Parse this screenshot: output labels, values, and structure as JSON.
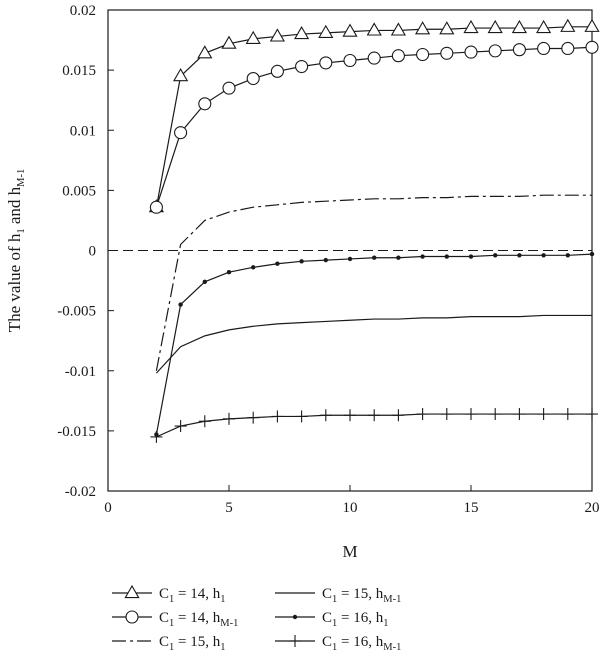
{
  "chart_data": {
    "type": "line",
    "xlabel": "M",
    "ylabel": {
      "prefix": "The value of h",
      "sub1": "1",
      "mid": " and h",
      "sub2": "M-1"
    },
    "xlim": [
      0,
      20
    ],
    "ylim": [
      -0.02,
      0.02
    ],
    "x_ticks": [
      0,
      5,
      10,
      15,
      20
    ],
    "x_tick_labels": [
      "0",
      "5",
      "10",
      "15",
      "20"
    ],
    "y_ticks": [
      0.02,
      0.015,
      0.01,
      0.005,
      0,
      -0.005,
      -0.01,
      -0.015,
      -0.02
    ],
    "y_tick_labels": [
      "0.02",
      "0.015",
      "0.01",
      "0.005",
      "0",
      "-0.005",
      "-0.01",
      "-0.015",
      "-0.02"
    ],
    "grid": false,
    "reference_line": {
      "y": 0,
      "style": "dashed"
    },
    "x": [
      2,
      3,
      4,
      5,
      6,
      7,
      8,
      9,
      10,
      11,
      12,
      13,
      14,
      15,
      16,
      17,
      18,
      19,
      20
    ],
    "series": [
      {
        "legend": {
          "lhs": "C",
          "lhs_sub": "1",
          "rhs": " = 14, h",
          "rhs_sub": "1"
        },
        "marker": "triangle",
        "line": "solid",
        "values": [
          0.0036,
          0.0145,
          0.0164,
          0.0172,
          0.0176,
          0.0178,
          0.018,
          0.0181,
          0.0182,
          0.0183,
          0.0183,
          0.0184,
          0.0184,
          0.0185,
          0.0185,
          0.0185,
          0.0185,
          0.0186,
          0.0186
        ]
      },
      {
        "legend": {
          "lhs": "C",
          "lhs_sub": "1",
          "rhs": " = 14, h",
          "rhs_sub": "M-1"
        },
        "marker": "circle",
        "line": "solid",
        "values": [
          0.0036,
          0.0098,
          0.0122,
          0.0135,
          0.0143,
          0.0149,
          0.0153,
          0.0156,
          0.0158,
          0.016,
          0.0162,
          0.0163,
          0.0164,
          0.0165,
          0.0166,
          0.0167,
          0.0168,
          0.0168,
          0.0169
        ]
      },
      {
        "legend": {
          "lhs": "C",
          "lhs_sub": "1",
          "rhs": " = 15, h",
          "rhs_sub": "1"
        },
        "marker": "none",
        "line": "dashdot",
        "values": [
          -0.01,
          0.0005,
          0.0025,
          0.0032,
          0.0036,
          0.0038,
          0.004,
          0.0041,
          0.0042,
          0.0043,
          0.0043,
          0.0044,
          0.0044,
          0.0045,
          0.0045,
          0.0045,
          0.0046,
          0.0046,
          0.0046
        ]
      },
      {
        "legend": {
          "lhs": "C",
          "lhs_sub": "1",
          "rhs": " = 15, h",
          "rhs_sub": "M-1"
        },
        "marker": "none",
        "line": "solid",
        "values": [
          -0.0102,
          -0.008,
          -0.0071,
          -0.0066,
          -0.0063,
          -0.0061,
          -0.006,
          -0.0059,
          -0.0058,
          -0.0057,
          -0.0057,
          -0.0056,
          -0.0056,
          -0.0055,
          -0.0055,
          -0.0055,
          -0.0054,
          -0.0054,
          -0.0054
        ]
      },
      {
        "legend": {
          "lhs": "C",
          "lhs_sub": "1",
          "rhs": " = 16, h",
          "rhs_sub": "1"
        },
        "marker": "dot",
        "line": "solid",
        "values": [
          -0.0153,
          -0.0045,
          -0.0026,
          -0.0018,
          -0.0014,
          -0.0011,
          -0.0009,
          -0.0008,
          -0.0007,
          -0.0006,
          -0.0006,
          -0.0005,
          -0.0005,
          -0.0005,
          -0.0004,
          -0.0004,
          -0.0004,
          -0.0004,
          -0.0003
        ]
      },
      {
        "legend": {
          "lhs": "C",
          "lhs_sub": "1",
          "rhs": " = 16, h",
          "rhs_sub": "M-1"
        },
        "marker": "plus",
        "line": "solid",
        "values": [
          -0.0155,
          -0.0146,
          -0.0142,
          -0.014,
          -0.0139,
          -0.0138,
          -0.0138,
          -0.0137,
          -0.0137,
          -0.0137,
          -0.0137,
          -0.0136,
          -0.0136,
          -0.0136,
          -0.0136,
          -0.0136,
          -0.0136,
          -0.0136,
          -0.0136
        ]
      }
    ],
    "legend_placement": "bottom"
  }
}
